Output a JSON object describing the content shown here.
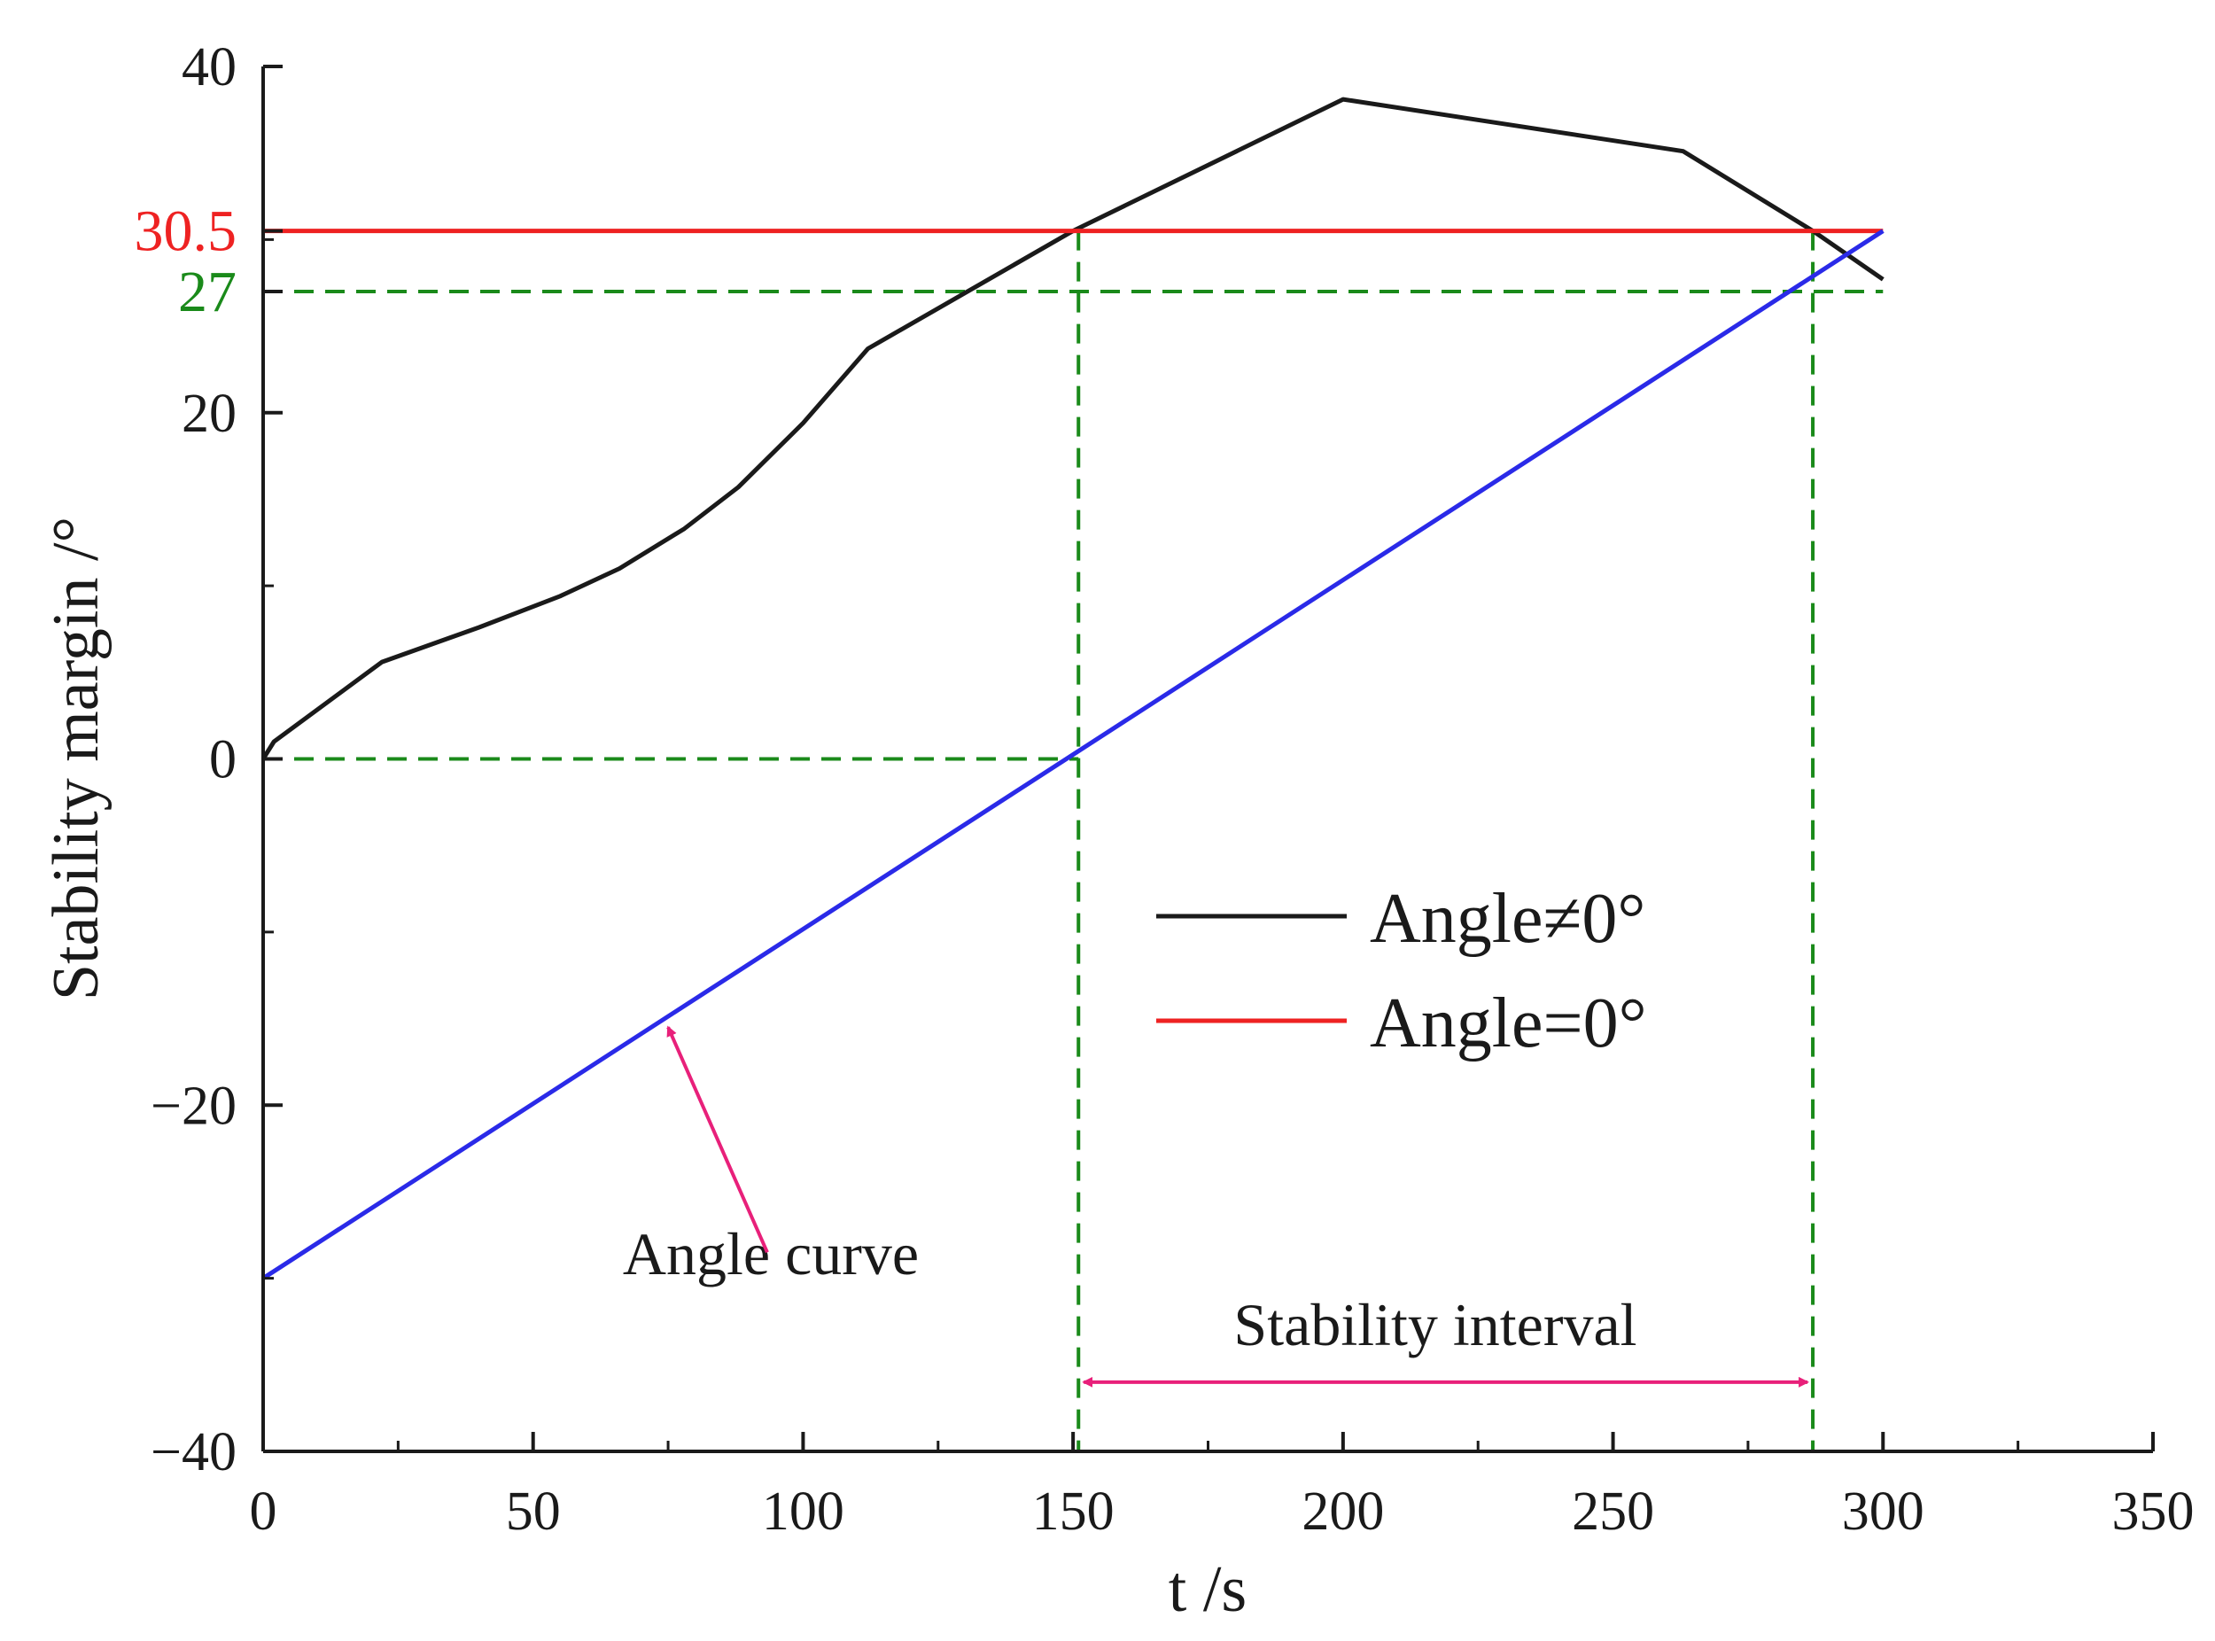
{
  "chart_data": {
    "type": "line",
    "title": "",
    "xlabel": "t /s",
    "ylabel": "Stability margin /°",
    "xlim": [
      0,
      350
    ],
    "ylim": [
      -40,
      40
    ],
    "xticks": [
      0,
      50,
      100,
      150,
      200,
      250,
      300,
      350
    ],
    "xtick_labels": [
      "0",
      "50",
      "100",
      "150",
      "200",
      "250",
      "300",
      "350"
    ],
    "yticks": [
      -40,
      -20,
      0,
      20,
      40
    ],
    "ytick_labels": [
      "−40",
      "−20",
      "0",
      "20",
      "40"
    ],
    "grid": false,
    "legend_position": "center-right",
    "series": [
      {
        "name": "Angle≠0°",
        "color": "#1a1a1a",
        "in_legend": true,
        "x": [
          0,
          2,
          22,
          40,
          55,
          66,
          78,
          88,
          100,
          112,
          150,
          200,
          263,
          287,
          300
        ],
        "y": [
          0,
          1,
          5.6,
          7.6,
          9.4,
          11,
          13.3,
          15.7,
          19.4,
          23.7,
          30.5,
          38.1,
          35.1,
          30.5,
          27.7
        ]
      },
      {
        "name": "Angle=0°",
        "color": "#ee2222",
        "in_legend": true,
        "x": [
          0,
          300
        ],
        "y": [
          30.5,
          30.5
        ]
      },
      {
        "name": "Angle curve",
        "color": "#2a2ae8",
        "in_legend": false,
        "x": [
          0,
          300
        ],
        "y": [
          -30,
          30.5
        ]
      }
    ],
    "reference_lines": [
      {
        "orientation": "horizontal",
        "value": 27,
        "color": "#1a8a1a",
        "dash": true
      },
      {
        "orientation": "horizontal",
        "value": 0,
        "color": "#1a8a1a",
        "dash": true,
        "x_end": 151
      },
      {
        "orientation": "vertical",
        "value": 151,
        "color": "#1a8a1a",
        "dash": true
      },
      {
        "orientation": "vertical",
        "value": 287,
        "color": "#1a8a1a",
        "dash": true
      }
    ],
    "extra_y_labels": [
      {
        "value": 30.5,
        "text": "30.5",
        "color": "#ee2222"
      },
      {
        "value": 27,
        "text": "27",
        "color": "#1a8a1a"
      }
    ],
    "annotations": [
      {
        "text": "Angle curve",
        "x": 95,
        "y": -28.5,
        "arrow_to": [
          75,
          -15.5
        ],
        "color": "#e8207a"
      },
      {
        "text": "Stability interval",
        "x": 217,
        "y": -33,
        "range": [
          151,
          287
        ],
        "arrow_y": -36,
        "color": "#e8207a"
      }
    ]
  }
}
